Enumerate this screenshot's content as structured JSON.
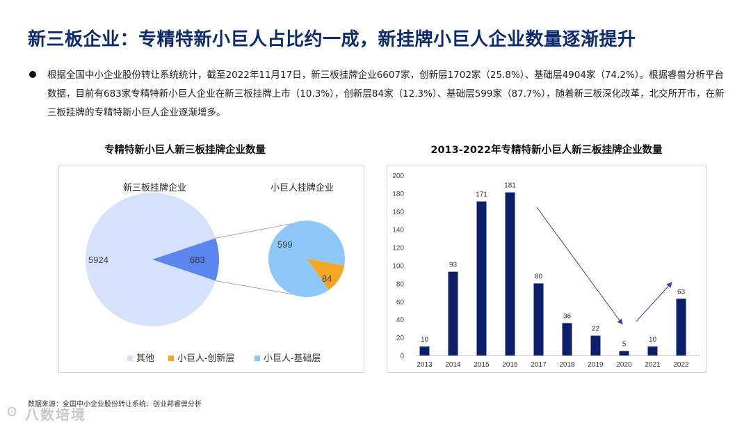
{
  "slide": {
    "title": "新三板企业：专精特新小巨人占比约一成，新挂牌小巨人企业数量逐渐提升",
    "bullet": "根据全国中小企业股份转让系统统计，截至2022年11月17日，新三板挂牌企业6607家，创新层1702家（25.8%）、基础层4904家（74.2%）。根据睿兽分析平台数据，目前有683家专精特新小巨人企业在新三板挂牌上市（10.3%），创新层84家（12.3%）、基础层599家（87.7%），随着新三板深化改革，北交所开市，在新三板挂牌的专精特新小巨人企业逐渐增多。",
    "source": "数据来源：全国中小企业股份转让系统、创业邦睿兽分析",
    "watermark": "八数培境"
  },
  "chart_data": [
    {
      "type": "pie",
      "title": "专精特新小巨人新三板挂牌企业数量",
      "subcharts": [
        {
          "label": "新三板挂牌企业",
          "slices": [
            {
              "name": "其他",
              "value": 5924
            },
            {
              "name": "小巨人",
              "value": 683
            }
          ]
        },
        {
          "label": "小巨人挂牌企业",
          "slices": [
            {
              "name": "小巨人-基础层",
              "value": 599
            },
            {
              "name": "小巨人-创新层",
              "value": 84
            }
          ]
        }
      ],
      "legend": [
        "其他",
        "小巨人-创新层",
        "小巨人-基础层"
      ],
      "colors": {
        "其他": "#d6e2fb",
        "小巨人": "#5b86f0",
        "小巨人-创新层": "#f5a623",
        "小巨人-基础层": "#8ec8f8"
      },
      "legend_position": "bottom"
    },
    {
      "type": "bar",
      "title": "2013-2022年专精特新小巨人新三板挂牌企业数量",
      "categories": [
        "2013",
        "2014",
        "2015",
        "2016",
        "2017",
        "2018",
        "2019",
        "2020",
        "2021",
        "2022"
      ],
      "values": [
        10,
        93,
        171,
        181,
        80,
        36,
        22,
        5,
        10,
        63
      ],
      "ylim": [
        0,
        200
      ],
      "yticks": [
        0,
        20,
        40,
        60,
        80,
        100,
        120,
        140,
        160,
        180,
        200
      ],
      "grid": false,
      "color": "#0d1f6b"
    }
  ]
}
